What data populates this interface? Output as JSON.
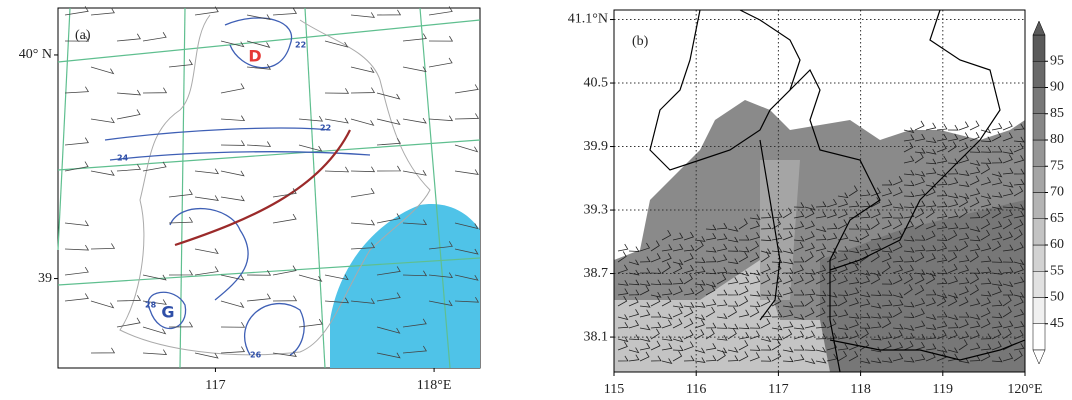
{
  "chart_data": [
    {
      "type": "map",
      "panel_label": "(a)",
      "xlim": [
        116.28,
        118.21
      ],
      "ylim": [
        38.6,
        40.21
      ],
      "xticks": [
        117,
        {
          "value": 118,
          "label": "118°E"
        }
      ],
      "yticks": [
        39,
        {
          "value": 40,
          "label": "40° N"
        }
      ],
      "annotations": [
        "D",
        "G",
        "22",
        "22",
        "24",
        "26",
        "28"
      ]
    },
    {
      "type": "map",
      "panel_label": "(b)",
      "xlim": [
        115,
        120
      ],
      "ylim": [
        37.77,
        41.19
      ],
      "xticks": [
        115,
        116,
        117,
        118,
        119,
        {
          "value": 120,
          "label": "120°E"
        }
      ],
      "yticks": [
        38.1,
        38.7,
        39.3,
        39.9,
        40.5,
        {
          "value": 41.1,
          "label": "41.1°N"
        }
      ],
      "grid": true
    },
    {
      "type": "colorbar",
      "ylim": [
        40,
        100
      ],
      "yticks": [
        45,
        50,
        55,
        60,
        65,
        70,
        75,
        80,
        85,
        90,
        95
      ]
    }
  ]
}
